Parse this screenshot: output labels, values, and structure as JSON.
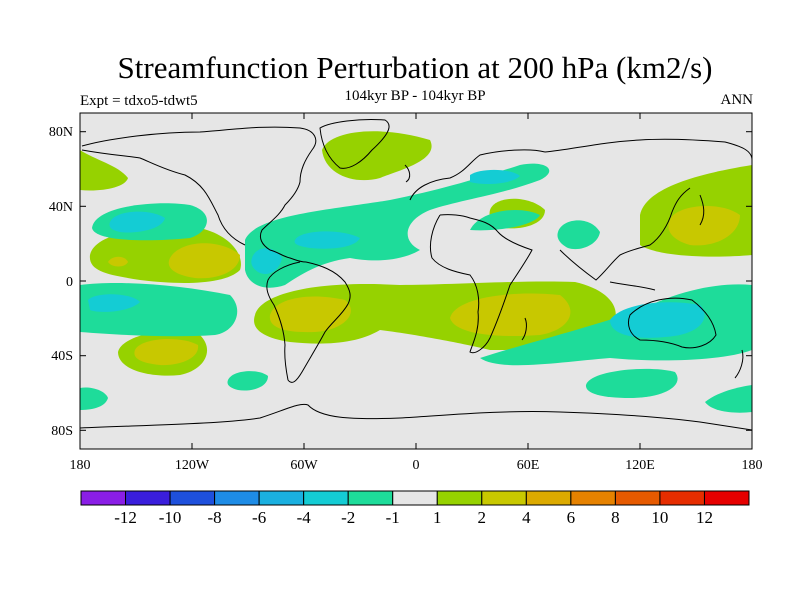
{
  "title": "Streamfunction Perturbation at 200 hPa (km2/s)",
  "subtitle": "104kyr BP - 104kyr BP",
  "left_label": "Expt = tdxo5-tdwt5",
  "right_label": "ANN",
  "map": {
    "projection": "cylindrical equidistant",
    "lon_range": [
      -180,
      180
    ],
    "lat_range": [
      -90,
      90
    ],
    "lat_ticks": [
      "80N",
      "40N",
      "0",
      "40S",
      "80S"
    ],
    "lon_ticks": [
      "180",
      "120W",
      "60W",
      "0",
      "60E",
      "120E",
      "180"
    ],
    "background_level_color": "#e6e6e6"
  },
  "colorbar": {
    "labels": [
      "-12",
      "-10",
      "-8",
      "-6",
      "-4",
      "-2",
      "-1",
      "1",
      "2",
      "4",
      "6",
      "8",
      "10",
      "12"
    ],
    "colors": [
      "#8a1ee6",
      "#3a1edc",
      "#1e50dc",
      "#1e8ce6",
      "#1ab0e0",
      "#14ccd4",
      "#1edc9a",
      "#e6e6e6",
      "#96d200",
      "#c8c800",
      "#dcaa00",
      "#e68200",
      "#e65a00",
      "#e62d00",
      "#e60000"
    ]
  },
  "field_colors": {
    "neg1": "#1edc9a",
    "neg2": "#14ccd4",
    "pos1": "#96d200",
    "pos2": "#c8c800"
  }
}
